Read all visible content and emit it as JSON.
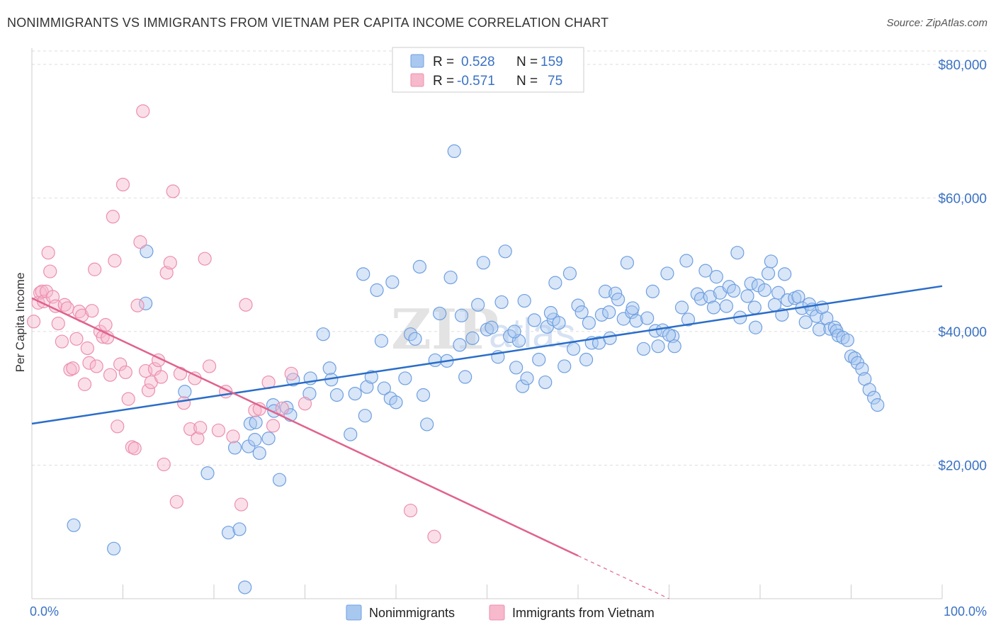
{
  "header": {
    "title": "NONIMMIGRANTS VS IMMIGRANTS FROM VIETNAM PER CAPITA INCOME CORRELATION CHART",
    "source": "Source: ZipAtlas.com"
  },
  "watermark": {
    "part1": "ZIP",
    "part2": "atlas"
  },
  "legend_top": {
    "rows": [
      {
        "r_label": "R =",
        "r_value": "0.528",
        "n_label": "N =",
        "n_value": "159",
        "color": "#a9c8f0"
      },
      {
        "r_label": "R =",
        "r_value": "-0.571",
        "n_label": "N =",
        "n_value": "75",
        "color": "#f5b8cb"
      }
    ]
  },
  "colors": {
    "blue_fill": "#a9c8f0",
    "blue_stroke": "#6f9fe0",
    "blue_line": "#2a6dc9",
    "pink_fill": "#f7b9cc",
    "pink_stroke": "#ec8fae",
    "pink_line": "#e0628d",
    "grid": "#dedede",
    "axis_text": "#3a72c4"
  },
  "chart_data": {
    "type": "scatter",
    "title": "NONIMMIGRANTS VS IMMIGRANTS FROM VIETNAM PER CAPITA INCOME CORRELATION CHART",
    "xlabel": "",
    "ylabel": "Per Capita Income",
    "xlim": [
      0,
      100
    ],
    "ylim": [
      0,
      82000
    ],
    "x_tick_labels": [
      "0.0%",
      "100.0%"
    ],
    "y_ticks": [
      20000,
      40000,
      60000,
      80000
    ],
    "y_tick_labels": [
      "$20,000",
      "$40,000",
      "$60,000",
      "$80,000"
    ],
    "grid": true,
    "legend_position": "top-center",
    "series": [
      {
        "name": "Nonimmigrants",
        "color": "#a9c8f0",
        "trend": {
          "x": [
            0,
            100
          ],
          "y": [
            26200,
            46800
          ],
          "dashed_from": null
        },
        "points": [
          [
            4.6,
            11000
          ],
          [
            9.0,
            7500
          ],
          [
            12.5,
            44200
          ],
          [
            12.6,
            52000
          ],
          [
            16.8,
            31000
          ],
          [
            19.3,
            18800
          ],
          [
            21.6,
            9900
          ],
          [
            22.3,
            22600
          ],
          [
            22.8,
            10400
          ],
          [
            23.4,
            1700
          ],
          [
            23.8,
            22800
          ],
          [
            24.0,
            26200
          ],
          [
            24.5,
            23800
          ],
          [
            24.6,
            26400
          ],
          [
            25.0,
            21800
          ],
          [
            26.0,
            24000
          ],
          [
            26.5,
            29000
          ],
          [
            26.6,
            28100
          ],
          [
            27.2,
            17800
          ],
          [
            28.0,
            28600
          ],
          [
            28.4,
            27500
          ],
          [
            28.7,
            32800
          ],
          [
            30.5,
            30700
          ],
          [
            30.6,
            33000
          ],
          [
            32.0,
            39600
          ],
          [
            32.7,
            34500
          ],
          [
            32.9,
            32800
          ],
          [
            33.5,
            30500
          ],
          [
            35.0,
            24600
          ],
          [
            35.5,
            30700
          ],
          [
            36.4,
            48600
          ],
          [
            36.6,
            27400
          ],
          [
            36.8,
            31700
          ],
          [
            37.3,
            33200
          ],
          [
            37.9,
            46200
          ],
          [
            38.4,
            38600
          ],
          [
            38.7,
            31500
          ],
          [
            39.4,
            30000
          ],
          [
            39.6,
            47400
          ],
          [
            40.0,
            29400
          ],
          [
            41.0,
            33000
          ],
          [
            41.6,
            39600
          ],
          [
            42.1,
            38900
          ],
          [
            42.6,
            49700
          ],
          [
            43.0,
            30500
          ],
          [
            43.4,
            26100
          ],
          [
            44.3,
            35700
          ],
          [
            44.8,
            42700
          ],
          [
            45.6,
            35600
          ],
          [
            46.0,
            48100
          ],
          [
            46.4,
            67000
          ],
          [
            47.2,
            42400
          ],
          [
            47.6,
            33200
          ],
          [
            48.4,
            39000
          ],
          [
            49.0,
            44000
          ],
          [
            49.6,
            50300
          ],
          [
            50.0,
            40300
          ],
          [
            50.5,
            40600
          ],
          [
            51.2,
            36200
          ],
          [
            51.6,
            44400
          ],
          [
            52.0,
            52000
          ],
          [
            52.5,
            39300
          ],
          [
            53.2,
            34600
          ],
          [
            53.5,
            38600
          ],
          [
            53.9,
            31800
          ],
          [
            54.1,
            44600
          ],
          [
            54.4,
            33000
          ],
          [
            55.2,
            41700
          ],
          [
            55.7,
            35800
          ],
          [
            56.4,
            32400
          ],
          [
            56.6,
            40700
          ],
          [
            57.3,
            41800
          ],
          [
            57.5,
            47300
          ],
          [
            57.9,
            41300
          ],
          [
            58.5,
            34800
          ],
          [
            59.1,
            48700
          ],
          [
            59.5,
            37400
          ],
          [
            60.0,
            43900
          ],
          [
            60.4,
            42900
          ],
          [
            60.9,
            35800
          ],
          [
            61.2,
            41300
          ],
          [
            61.5,
            38300
          ],
          [
            62.3,
            38300
          ],
          [
            62.6,
            42500
          ],
          [
            63.0,
            46000
          ],
          [
            63.4,
            42900
          ],
          [
            63.5,
            39000
          ],
          [
            64.1,
            45700
          ],
          [
            64.4,
            44800
          ],
          [
            65.0,
            41900
          ],
          [
            65.4,
            50300
          ],
          [
            65.9,
            42900
          ],
          [
            66.4,
            41600
          ],
          [
            67.2,
            37400
          ],
          [
            67.6,
            42000
          ],
          [
            68.2,
            46000
          ],
          [
            68.5,
            40100
          ],
          [
            68.8,
            37800
          ],
          [
            69.3,
            40200
          ],
          [
            69.8,
            48700
          ],
          [
            70.4,
            39300
          ],
          [
            70.6,
            37800
          ],
          [
            71.4,
            43600
          ],
          [
            71.9,
            50600
          ],
          [
            72.1,
            41800
          ],
          [
            73.1,
            45600
          ],
          [
            73.5,
            44900
          ],
          [
            74.0,
            49100
          ],
          [
            74.5,
            45200
          ],
          [
            74.9,
            43600
          ],
          [
            75.2,
            48200
          ],
          [
            75.6,
            45800
          ],
          [
            76.3,
            43800
          ],
          [
            76.6,
            46700
          ],
          [
            77.1,
            46100
          ],
          [
            77.5,
            51800
          ],
          [
            77.8,
            42100
          ],
          [
            78.6,
            45300
          ],
          [
            79.0,
            47200
          ],
          [
            79.4,
            43600
          ],
          [
            79.8,
            46900
          ],
          [
            80.5,
            46200
          ],
          [
            80.9,
            48700
          ],
          [
            81.2,
            50500
          ],
          [
            81.6,
            44000
          ],
          [
            82.0,
            45800
          ],
          [
            82.4,
            42500
          ],
          [
            82.7,
            48600
          ],
          [
            83.0,
            44700
          ],
          [
            83.8,
            45000
          ],
          [
            84.2,
            45200
          ],
          [
            84.6,
            43500
          ],
          [
            85.0,
            41400
          ],
          [
            85.4,
            44100
          ],
          [
            85.7,
            43300
          ],
          [
            86.2,
            42300
          ],
          [
            86.5,
            40300
          ],
          [
            86.8,
            43600
          ],
          [
            87.3,
            42000
          ],
          [
            87.7,
            40400
          ],
          [
            88.2,
            40600
          ],
          [
            88.4,
            40100
          ],
          [
            88.6,
            39400
          ],
          [
            89.1,
            39100
          ],
          [
            89.6,
            38700
          ],
          [
            90.0,
            36300
          ],
          [
            90.4,
            36000
          ],
          [
            90.7,
            35300
          ],
          [
            91.2,
            34400
          ],
          [
            91.5,
            32900
          ],
          [
            92.0,
            31300
          ],
          [
            92.5,
            30100
          ],
          [
            92.9,
            29000
          ],
          [
            79.5,
            40600
          ],
          [
            70.0,
            39500
          ],
          [
            66.0,
            43500
          ],
          [
            57.0,
            42800
          ],
          [
            53.0,
            40000
          ],
          [
            47.0,
            38000
          ]
        ]
      },
      {
        "name": "Immigrants from Vietnam",
        "color": "#f7b9cc",
        "trend": {
          "x": [
            0,
            70
          ],
          "y": [
            45000,
            0
          ],
          "dashed_from": 60
        },
        "points": [
          [
            0.2,
            41500
          ],
          [
            0.7,
            44300
          ],
          [
            0.9,
            45800
          ],
          [
            1.1,
            46000
          ],
          [
            1.3,
            44500
          ],
          [
            1.6,
            46000
          ],
          [
            1.8,
            51800
          ],
          [
            2.0,
            49000
          ],
          [
            2.3,
            45200
          ],
          [
            2.6,
            43800
          ],
          [
            2.9,
            41200
          ],
          [
            3.3,
            38500
          ],
          [
            3.6,
            44000
          ],
          [
            3.9,
            43500
          ],
          [
            4.2,
            34300
          ],
          [
            4.5,
            34500
          ],
          [
            4.9,
            38900
          ],
          [
            5.2,
            43000
          ],
          [
            5.5,
            42400
          ],
          [
            5.8,
            32100
          ],
          [
            6.1,
            37500
          ],
          [
            6.3,
            35300
          ],
          [
            6.6,
            43100
          ],
          [
            6.9,
            49300
          ],
          [
            7.1,
            34800
          ],
          [
            7.5,
            40000
          ],
          [
            7.8,
            39200
          ],
          [
            8.1,
            41000
          ],
          [
            8.3,
            39100
          ],
          [
            8.6,
            33500
          ],
          [
            8.9,
            57200
          ],
          [
            9.1,
            50600
          ],
          [
            9.4,
            25800
          ],
          [
            9.7,
            35100
          ],
          [
            10.0,
            62000
          ],
          [
            10.3,
            33900
          ],
          [
            10.6,
            29900
          ],
          [
            11.0,
            22700
          ],
          [
            11.3,
            22500
          ],
          [
            11.6,
            43900
          ],
          [
            11.9,
            53400
          ],
          [
            12.2,
            73000
          ],
          [
            12.5,
            34100
          ],
          [
            12.8,
            31200
          ],
          [
            13.1,
            32400
          ],
          [
            13.5,
            34400
          ],
          [
            13.9,
            35700
          ],
          [
            14.2,
            33200
          ],
          [
            14.5,
            20100
          ],
          [
            14.8,
            48800
          ],
          [
            15.2,
            50300
          ],
          [
            15.5,
            61000
          ],
          [
            15.9,
            14500
          ],
          [
            16.3,
            33700
          ],
          [
            16.7,
            29300
          ],
          [
            17.4,
            25400
          ],
          [
            17.9,
            33000
          ],
          [
            18.2,
            24000
          ],
          [
            18.5,
            25600
          ],
          [
            19.0,
            50900
          ],
          [
            19.5,
            34800
          ],
          [
            20.5,
            25200
          ],
          [
            21.3,
            31000
          ],
          [
            22.1,
            24300
          ],
          [
            23.0,
            14100
          ],
          [
            23.5,
            44000
          ],
          [
            24.5,
            28200
          ],
          [
            25.0,
            28400
          ],
          [
            26.0,
            32400
          ],
          [
            26.5,
            25900
          ],
          [
            27.5,
            28500
          ],
          [
            28.5,
            33700
          ],
          [
            30.0,
            29200
          ],
          [
            41.6,
            13200
          ],
          [
            44.2,
            9300
          ]
        ]
      }
    ]
  },
  "legend_bottom": {
    "items": [
      {
        "label": "Nonimmigrants",
        "color": "#a9c8f0"
      },
      {
        "label": "Immigrants from Vietnam",
        "color": "#f7b9cc"
      }
    ]
  }
}
